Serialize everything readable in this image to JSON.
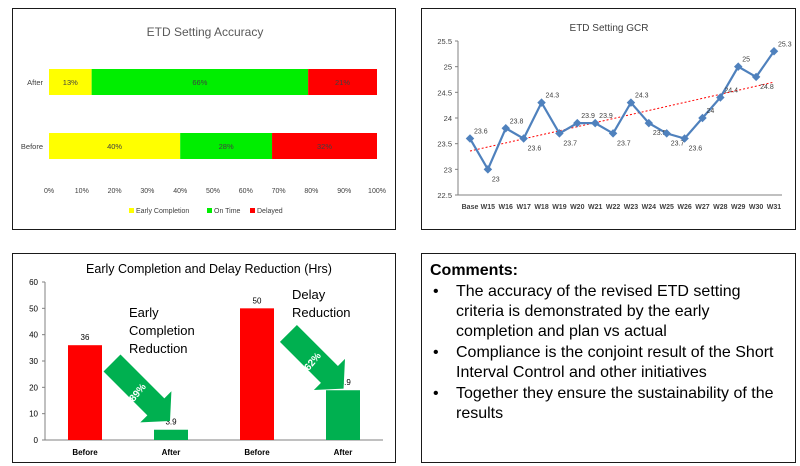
{
  "chart_data": [
    {
      "type": "bar",
      "orientation": "horizontal",
      "stacked": true,
      "percent": true,
      "title": "ETD Setting Accuracy",
      "categories": [
        "After",
        "Before"
      ],
      "series": [
        {
          "name": "Early Completion",
          "values": [
            13,
            40
          ],
          "labels": [
            "13%",
            "40%"
          ],
          "color": "#ffff00"
        },
        {
          "name": "On Time",
          "values": [
            66,
            28
          ],
          "labels": [
            "66%",
            "28%"
          ],
          "color": "#00ee00"
        },
        {
          "name": "Delayed",
          "values": [
            21,
            32
          ],
          "labels": [
            "21%",
            "32%"
          ],
          "color": "#ff0000"
        }
      ],
      "xlim": [
        0,
        100
      ],
      "xticks": [
        "0%",
        "10%",
        "20%",
        "30%",
        "40%",
        "50%",
        "60%",
        "70%",
        "80%",
        "90%",
        "100%"
      ],
      "legend_position": "bottom"
    },
    {
      "type": "line",
      "title": "ETD Setting GCR",
      "categories": [
        "Base",
        "W15",
        "W16",
        "W17",
        "W18",
        "W19",
        "W20",
        "W21",
        "W22",
        "W23",
        "W24",
        "W25",
        "W26",
        "W27",
        "W28",
        "W29",
        "W30",
        "W31"
      ],
      "series": [
        {
          "values": [
            23.6,
            23,
            23.8,
            23.6,
            24.3,
            23.7,
            23.9,
            23.9,
            23.7,
            24.3,
            23.9,
            23.7,
            23.6,
            24,
            24.4,
            25,
            24.8,
            25.3
          ],
          "color": "#4f81bd"
        }
      ],
      "data_labels": [
        "23.6",
        "23",
        "23.8",
        "23.6",
        "24.3",
        "23.7",
        "23.9",
        "23.9",
        "23.7",
        "24.3",
        "23.9",
        "23.7",
        "23.6",
        "24",
        "24.4",
        "25",
        "24.8",
        "25.3"
      ],
      "trendline": {
        "type": "linear",
        "style": "dotted",
        "color": "#ff0000"
      },
      "ylim": [
        22.5,
        25.5
      ],
      "yticks": [
        "22.5",
        "23",
        "23.5",
        "24",
        "24.5",
        "25",
        "25.5"
      ],
      "grid": false
    },
    {
      "type": "bar",
      "title": "Early Completion and Delay Reduction (Hrs)",
      "categories": [
        "Before",
        "After",
        "Before",
        "After"
      ],
      "values": [
        36,
        3.9,
        50,
        18.9
      ],
      "value_labels": [
        "36",
        "3.9",
        "50",
        "18.9"
      ],
      "colors": [
        "#ff0000",
        "#00b050",
        "#ff0000",
        "#00b050"
      ],
      "ylim": [
        0,
        60
      ],
      "yticks": [
        "0",
        "10",
        "20",
        "30",
        "40",
        "50",
        "60"
      ],
      "annotations": [
        {
          "text_lines": [
            "Early",
            "Completion",
            "Reduction"
          ],
          "arrow_label": "89%"
        },
        {
          "text_lines": [
            "Delay",
            "Reduction"
          ],
          "arrow_label": "62%"
        }
      ]
    }
  ],
  "comments": {
    "heading": "Comments:",
    "items": [
      {
        "bullet": "•",
        "lines": [
          "The accuracy of the revised ETD setting",
          "criteria is demonstrated by the early",
          "completion and plan vs actual"
        ]
      },
      {
        "bullet": "•",
        "lines": [
          "Compliance is the conjoint result of the Short",
          "Interval Control and other initiatives"
        ]
      },
      {
        "bullet": "•",
        "lines": [
          "Together they ensure the sustainability of the",
          "results"
        ]
      }
    ]
  }
}
